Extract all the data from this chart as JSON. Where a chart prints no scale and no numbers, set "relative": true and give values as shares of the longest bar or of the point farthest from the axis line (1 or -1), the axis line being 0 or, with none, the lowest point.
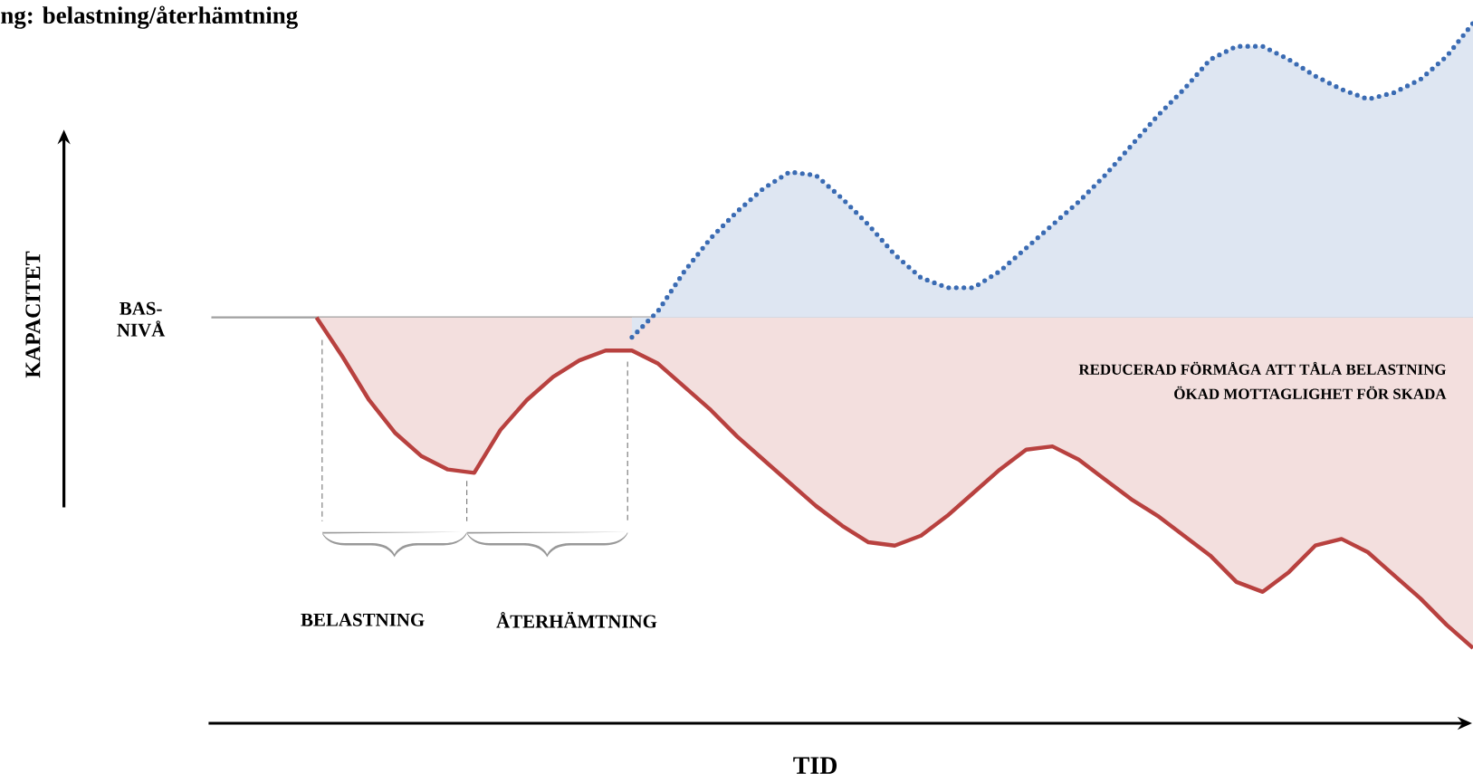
{
  "chart_data": {
    "type": "area",
    "relative": true,
    "title": "ng: belastning/återhämtning",
    "xlabel": "TID",
    "categories": [
      null,
      null,
      null,
      null,
      null,
      null,
      null,
      null,
      null,
      null,
      null,
      null,
      null,
      null,
      null,
      null,
      null,
      null,
      null,
      null,
      null,
      null,
      null,
      null,
      null,
      null,
      null,
      null,
      null,
      null,
      null,
      null,
      null,
      null,
      null,
      null,
      null,
      null,
      null,
      null,
      null,
      null,
      null,
      null,
      null,
      null,
      null,
      null,
      null
    ],
    "series": [
      {
        "line_style": "solid",
        "color": "#b8413f",
        "values": [
          null,
          null,
          null,
          null,
          0,
          -0.12,
          -0.25,
          -0.35,
          -0.42,
          -0.46,
          -0.47,
          -0.34,
          -0.25,
          -0.18,
          -0.13,
          -0.1,
          -0.1,
          -0.14,
          -0.21,
          -0.28,
          -0.36,
          -0.43,
          -0.5,
          -0.57,
          -0.63,
          -0.68,
          -0.69,
          -0.66,
          -0.6,
          -0.53,
          -0.46,
          -0.4,
          -0.39,
          -0.43,
          -0.49,
          -0.55,
          -0.6,
          -0.66,
          -0.72,
          -0.8,
          -0.83,
          -0.77,
          -0.69,
          -0.67,
          -0.71,
          -0.78,
          -0.85,
          -0.93,
          -1
        ]
      },
      {
        "line_style": "dotted",
        "color": "#3a6bb3",
        "values": [
          null,
          null,
          null,
          null,
          null,
          null,
          null,
          null,
          null,
          null,
          null,
          null,
          null,
          null,
          null,
          null,
          -0.06,
          0.02,
          0.14,
          0.24,
          0.32,
          0.39,
          0.44,
          0.43,
          0.36,
          0.28,
          0.19,
          0.12,
          0.09,
          0.09,
          0.14,
          0.21,
          0.28,
          0.35,
          0.43,
          0.52,
          0.61,
          0.69,
          0.78,
          0.82,
          0.82,
          0.78,
          0.73,
          0.69,
          0.66,
          0.68,
          0.72,
          0.79,
          0.89
        ]
      }
    ],
    "ref_lines": [
      {
        "axis": "y",
        "value": 0,
        "label": "BAS- NIVÅ",
        "color": "#a0a0a0"
      }
    ],
    "annotations": [
      "REDUCERAD FÖRMÅGA ATT TÅLA BELASTNING",
      "ÖKAD MOTTAGLIGHET FÖR SKADA",
      "BELASTNING",
      "ÅTERHÄMTNING",
      "KAPACITET"
    ]
  }
}
